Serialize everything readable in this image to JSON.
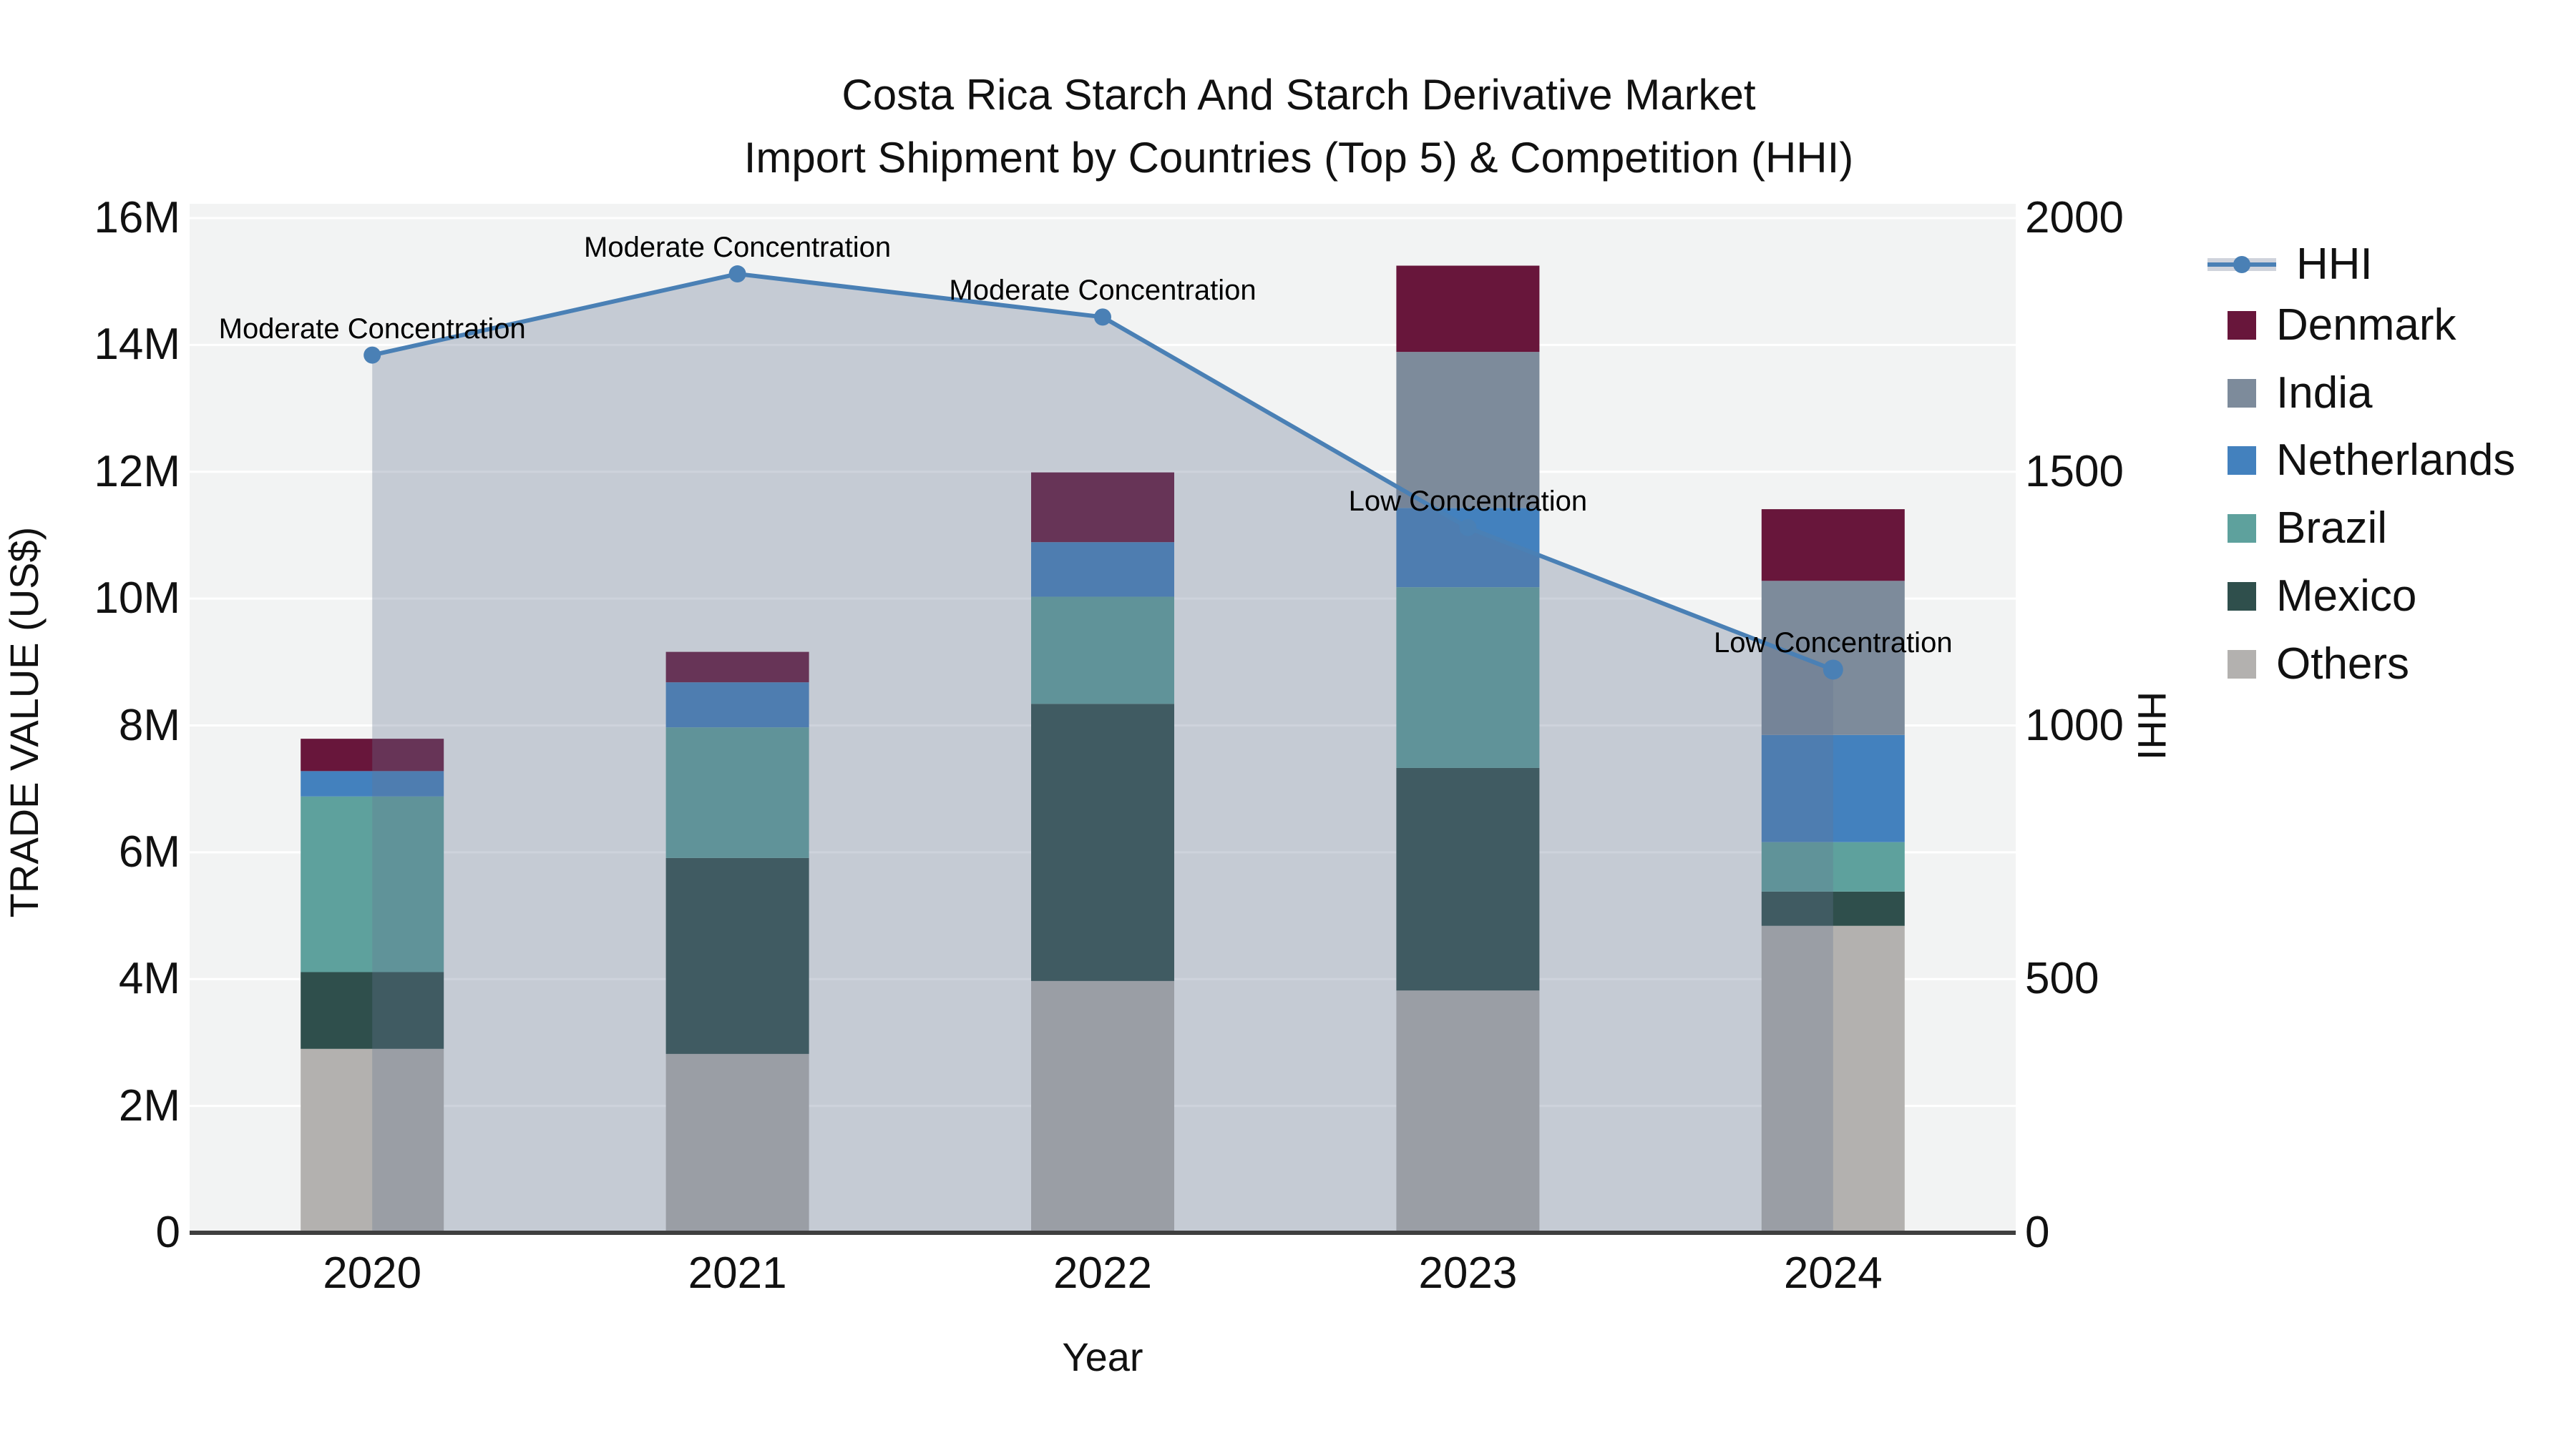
{
  "title": {
    "line1": "Costa Rica Starch And Starch Derivative Market",
    "line2": "Import Shipment by Countries (Top 5) & Competition (HHI)"
  },
  "axes": {
    "left": {
      "title": "TRADE VALUE (US$)",
      "tick_labels": [
        "0",
        "2M",
        "4M",
        "6M",
        "8M",
        "10M",
        "12M",
        "14M",
        "16M"
      ],
      "tick_values": [
        0,
        2,
        4,
        6,
        8,
        10,
        12,
        14,
        16
      ],
      "range": [
        0,
        16.2
      ]
    },
    "right": {
      "title": "HHI",
      "tick_labels": [
        "0",
        "500",
        "1000",
        "1500",
        "2000"
      ],
      "tick_values": [
        0,
        500,
        1000,
        1500,
        2000
      ],
      "range": [
        0,
        2025
      ]
    },
    "x": {
      "title": "Year",
      "tick_labels": [
        "2020",
        "2021",
        "2022",
        "2023",
        "2024"
      ]
    }
  },
  "legend": {
    "entries": [
      {
        "label": "HHI",
        "type": "line",
        "color": "#4A80B5"
      },
      {
        "label": "Denmark",
        "type": "box",
        "color": "#68163B"
      },
      {
        "label": "India",
        "type": "box",
        "color": "#7D8B9B"
      },
      {
        "label": "Netherlands",
        "type": "box",
        "color": "#4381BE"
      },
      {
        "label": "Brazil",
        "type": "box",
        "color": "#5EA19D"
      },
      {
        "label": "Mexico",
        "type": "box",
        "color": "#2F4F4C"
      },
      {
        "label": "Others",
        "type": "box",
        "color": "#B3B1AF"
      }
    ]
  },
  "colors": {
    "plot_bg": "#f2f3f3",
    "gridline": "#ffffff",
    "axis_line": "#3f3f3f",
    "hhi_line": "#4A80B5",
    "hhi_area_fill": "rgba(104,118,146,0.32)"
  },
  "chart_data": {
    "type": "combo",
    "bar_mode": "stacked",
    "title": "Costa Rica Starch And Starch Derivative Market — Import Shipment by Countries (Top 5) & Competition (HHI)",
    "categories": [
      "2020",
      "2021",
      "2022",
      "2023",
      "2024"
    ],
    "value_unit": "million US$",
    "series": [
      {
        "name": "Others",
        "color": "#B3B1AF",
        "values": [
          2.9,
          2.82,
          3.97,
          3.82,
          4.84
        ]
      },
      {
        "name": "Mexico",
        "color": "#2F4F4C",
        "values": [
          1.21,
          3.09,
          4.37,
          3.51,
          0.54
        ]
      },
      {
        "name": "Brazil",
        "color": "#5EA19D",
        "values": [
          2.77,
          2.06,
          1.69,
          2.85,
          0.78
        ]
      },
      {
        "name": "Netherlands",
        "color": "#4381BE",
        "values": [
          0.4,
          0.71,
          0.86,
          1.25,
          1.69
        ]
      },
      {
        "name": "India",
        "color": "#7D8B9B",
        "values": [
          0.0,
          0.0,
          0.0,
          2.46,
          2.43
        ]
      },
      {
        "name": "Denmark",
        "color": "#68163B",
        "values": [
          0.51,
          0.48,
          1.1,
          1.36,
          1.13
        ]
      }
    ],
    "bar_totals": [
      7.79,
      9.16,
      11.99,
      15.25,
      11.41
    ],
    "line_series": {
      "name": "HHI",
      "axis": "right",
      "color": "#4A80B5",
      "values": [
        1730,
        1890,
        1805,
        1390,
        1110
      ]
    },
    "annotations": [
      {
        "text": "Moderate Concentration",
        "category": "2020"
      },
      {
        "text": "Moderate Concentration",
        "category": "2021"
      },
      {
        "text": "Moderate Concentration",
        "category": "2022"
      },
      {
        "text": "Low Concentration",
        "category": "2023"
      },
      {
        "text": "Low Concentration",
        "category": "2024"
      }
    ],
    "xlabel": "Year",
    "ylabel_left": "TRADE VALUE (US$)",
    "ylabel_right": "HHI",
    "ylim_left": [
      0,
      16.2
    ],
    "ylim_right": [
      0,
      2025
    ],
    "grid": true,
    "legend_position": "right"
  }
}
